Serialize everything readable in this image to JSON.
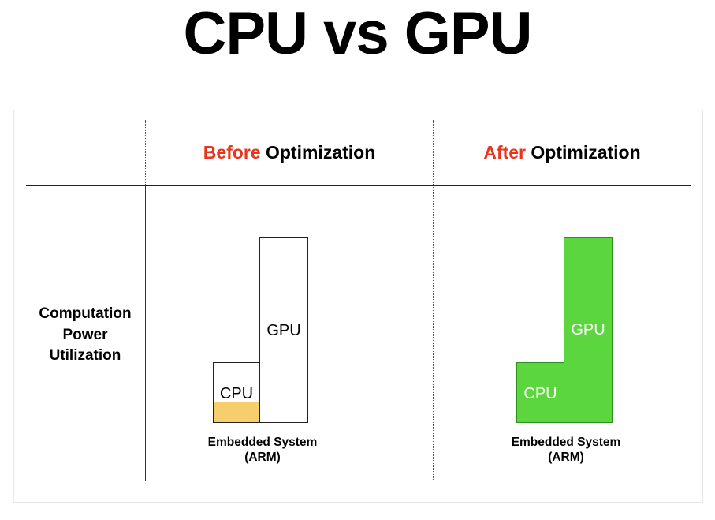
{
  "title": "CPU vs GPU",
  "row_label": [
    "Computation",
    "Power",
    "Utilization"
  ],
  "columns": [
    {
      "header_accent": "Before",
      "header_rest": "Optimization",
      "accent_color": "#e8351d",
      "caption_line1": "Embedded System",
      "caption_line2": "(ARM)",
      "bars": [
        {
          "label": "CPU",
          "relative_height": 0.32,
          "utilization_fill": 0.32,
          "fill_color": "#f6cf6c",
          "bar_color": "#ffffff"
        },
        {
          "label": "GPU",
          "relative_height": 1.0,
          "utilization_fill": 0,
          "fill_color": "#ffffff",
          "bar_color": "#ffffff"
        }
      ]
    },
    {
      "header_accent": "After",
      "header_rest": "Optimization",
      "accent_color": "#e8351d",
      "caption_line1": "Embedded System",
      "caption_line2": "(ARM)",
      "bars": [
        {
          "label": "CPU",
          "relative_height": 0.32,
          "utilization_fill": 1.0,
          "fill_color": "#5cd63e",
          "bar_color": "#5cd63e"
        },
        {
          "label": "GPU",
          "relative_height": 1.0,
          "utilization_fill": 1.0,
          "fill_color": "#5cd63e",
          "bar_color": "#5cd63e"
        }
      ]
    }
  ]
}
